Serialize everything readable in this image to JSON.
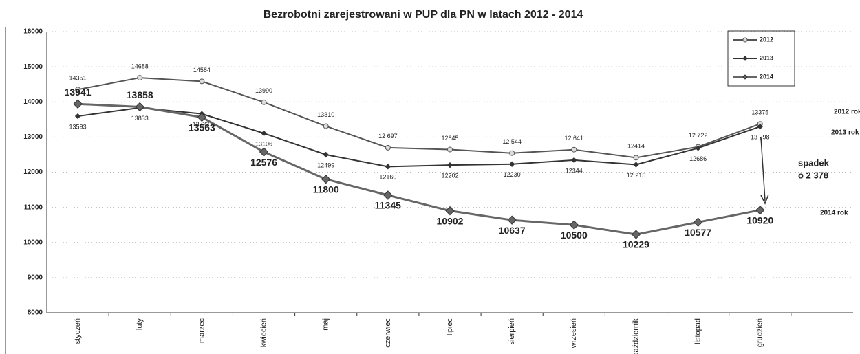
{
  "chart_data": {
    "type": "line",
    "title": "Bezrobotni zarejestrowani w PUP dla PN w latach 2012 - 2014",
    "categories": [
      "styczeń",
      "luty",
      "marzec",
      "kwiecień",
      "maj",
      "czerwiec",
      "lipiec",
      "sierpień",
      "wrzesień",
      "październik",
      "listopad",
      "grudzień"
    ],
    "series": [
      {
        "name": "2012",
        "color": "#555555",
        "marker": "circle",
        "values": [
          14351,
          14688,
          14584,
          13990,
          13310,
          12697,
          12645,
          12544,
          12641,
          12414,
          12722,
          13375
        ],
        "value_labels": [
          "14351",
          "14688",
          "14584",
          "13990",
          "13310",
          "12 697",
          "12645",
          "12 544",
          "12 641",
          "12414",
          "12 722",
          "13375"
        ]
      },
      {
        "name": "2013",
        "color": "#333333",
        "marker": "diamond",
        "values": [
          13593,
          13833,
          13660,
          13106,
          12499,
          12160,
          12202,
          12230,
          12344,
          12215,
          12686,
          13298
        ],
        "value_labels": [
          "13593",
          "13833",
          "13 660",
          "13106",
          "12499",
          "12160",
          "12202",
          "12230",
          "12344",
          "12 215",
          "12686",
          "13 298"
        ]
      },
      {
        "name": "2014",
        "color": "#666666",
        "marker": "diamond",
        "values": [
          13941,
          13858,
          13563,
          12576,
          11800,
          11345,
          10902,
          10637,
          10500,
          10229,
          10577,
          10920
        ]
      }
    ],
    "ylim": [
      8000,
      16000
    ],
    "yticks": [
      8000,
      9000,
      10000,
      11000,
      12000,
      13000,
      14000,
      15000,
      16000
    ],
    "grid": true,
    "legend": "upper right",
    "annotations": [
      "2012 rok",
      "2013 rok",
      "2014 rok",
      "spadek",
      "o 2 378"
    ]
  }
}
